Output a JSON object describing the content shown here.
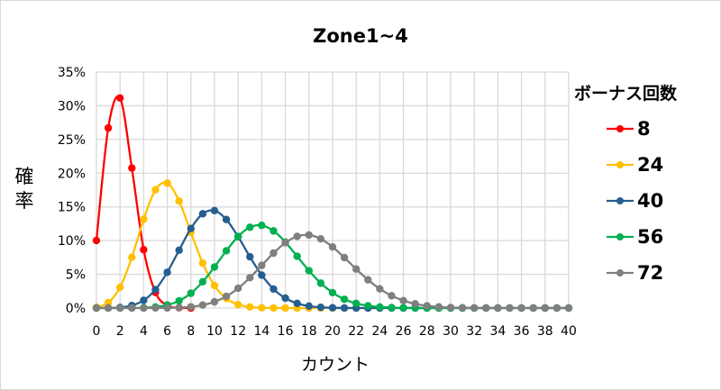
{
  "chart_data": {
    "type": "line",
    "title": "Zone1~4",
    "xlabel": "カウント",
    "ylabel": "確率",
    "xlim": [
      0,
      40
    ],
    "ylim": [
      0,
      0.35
    ],
    "x_ticks": [
      0,
      2,
      4,
      6,
      8,
      10,
      12,
      14,
      16,
      18,
      20,
      22,
      24,
      26,
      28,
      30,
      32,
      34,
      36,
      38,
      40
    ],
    "y_ticks": [
      "0%",
      "5%",
      "10%",
      "15%",
      "20%",
      "25%",
      "30%",
      "35%"
    ],
    "grid": true,
    "legend_title": "ボーナス回数",
    "legend_position": "right",
    "series": [
      {
        "name": "8",
        "color": "#ff0000",
        "values": [
          0.1001,
          0.267,
          0.3115,
          0.2076,
          0.0865,
          0.0231,
          0.0038,
          0.0004,
          0.0
        ]
      },
      {
        "name": "24",
        "color": "#ffc000",
        "values": [
          0.001,
          0.008,
          0.0308,
          0.0752,
          0.1316,
          0.1754,
          0.1852,
          0.1587,
          0.1124,
          0.0666,
          0.0333,
          0.0141,
          0.0051,
          0.0016,
          0.0004,
          0.0001,
          0,
          0,
          0,
          0,
          0,
          0,
          0,
          0,
          0
        ]
      },
      {
        "name": "40",
        "color": "#255e91",
        "values": [
          0.0,
          0.0001,
          0.0009,
          0.0037,
          0.0114,
          0.0273,
          0.053,
          0.0858,
          0.118,
          0.1398,
          0.1445,
          0.1313,
          0.1058,
          0.076,
          0.0488,
          0.0282,
          0.0147,
          0.0069,
          0.0029,
          0.0011,
          0.0004,
          0.0001,
          0,
          0,
          0,
          0,
          0,
          0,
          0,
          0,
          0,
          0,
          0,
          0,
          0,
          0,
          0,
          0,
          0,
          0,
          0
        ]
      },
      {
        "name": "56",
        "color": "#00b050",
        "values": [
          0,
          0,
          0,
          0.0001,
          0.0005,
          0.0016,
          0.0045,
          0.0107,
          0.0219,
          0.0389,
          0.0609,
          0.0849,
          0.1062,
          0.1198,
          0.1226,
          0.1144,
          0.0978,
          0.0767,
          0.0554,
          0.0369,
          0.0228,
          0.013,
          0.0069,
          0.0034,
          0.0016,
          0.0007,
          0.0003,
          0.0001,
          0,
          0,
          0,
          0,
          0,
          0,
          0,
          0,
          0,
          0,
          0,
          0,
          0
        ]
      },
      {
        "name": "72",
        "color": "#7f7f7f",
        "values": [
          0,
          0,
          0,
          0,
          0,
          0.0001,
          0.0002,
          0.0007,
          0.0018,
          0.0044,
          0.0092,
          0.0173,
          0.0293,
          0.045,
          0.0633,
          0.0815,
          0.0968,
          0.1063,
          0.1083,
          0.1026,
          0.0906,
          0.0748,
          0.0578,
          0.0419,
          0.0285,
          0.0182,
          0.011,
          0.0062,
          0.0033,
          0.0017,
          0.0008,
          0.0004,
          0.0002,
          0.0001,
          0,
          0,
          0,
          0,
          0,
          0,
          0
        ]
      }
    ]
  }
}
